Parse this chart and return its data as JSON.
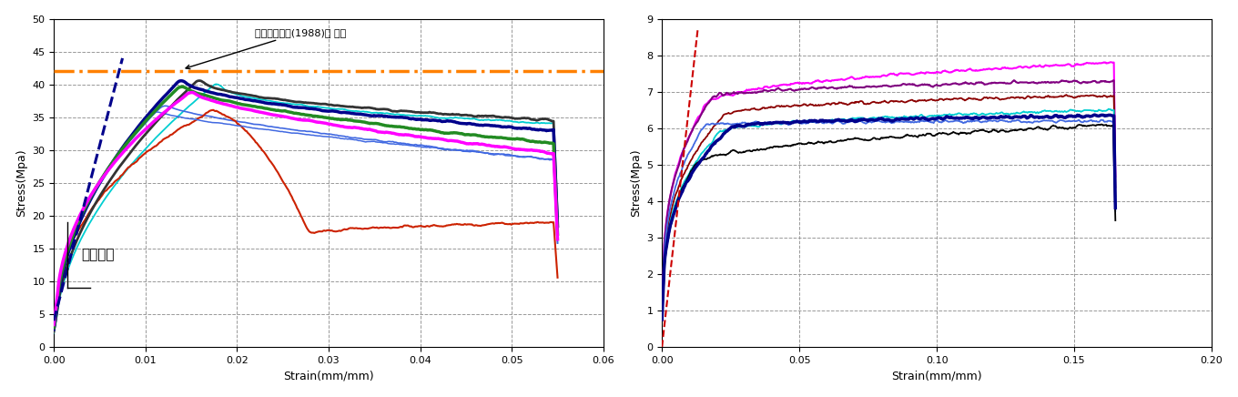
{
  "left_chart": {
    "xlabel": "Strain(mm/mm)",
    "ylabel": "Stress(Mpa)",
    "xlim": [
      0,
      0.06
    ],
    "ylim": [
      0,
      50
    ],
    "xticks": [
      0,
      0.01,
      0.02,
      0.03,
      0.04,
      0.05,
      0.06
    ],
    "yticks": [
      0,
      5,
      10,
      15,
      20,
      25,
      30,
      35,
      40,
      45,
      50
    ],
    "reference_line_y": 42,
    "annotation_text": "세계원목도감(1988)의 강도",
    "text_label": "탄성계수"
  },
  "right_chart": {
    "xlabel": "Strain(mm/mm)",
    "ylabel": "Stress(Mpa)",
    "xlim": [
      0,
      0.2
    ],
    "ylim": [
      0,
      9
    ],
    "xticks": [
      0,
      0.05,
      0.1,
      0.15,
      0.2
    ],
    "yticks": [
      0,
      1,
      2,
      3,
      4,
      5,
      6,
      7,
      8,
      9
    ]
  },
  "background_color": "#ffffff",
  "grid_color": "#999999",
  "grid_style": "--"
}
